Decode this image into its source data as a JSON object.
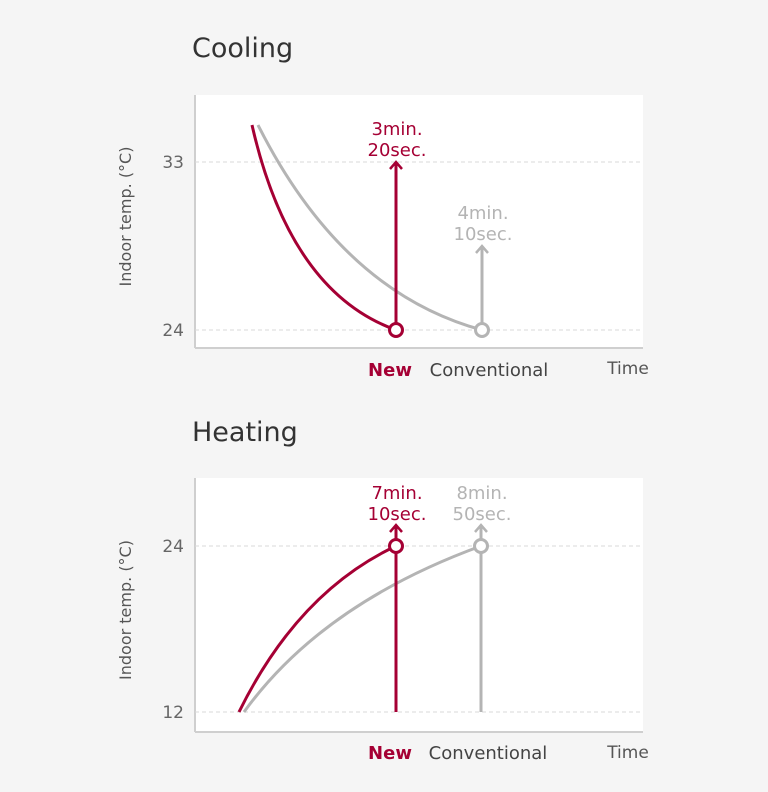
{
  "colors": {
    "new": "#a50034",
    "conventional": "#b4b4b4",
    "axis": "#cfcfcf",
    "grid": "#d8d8d8",
    "text": "#444444",
    "tick": "#666666"
  },
  "chart_data": [
    {
      "type": "line",
      "title": "Cooling",
      "ylabel": "Indoor temp. (°C)",
      "xlabel": "Time",
      "yticks": [
        33,
        24
      ],
      "grid": "dashed horizontal at ticks",
      "target_temp": 24,
      "series": [
        {
          "name": "New",
          "key": "new",
          "time_to_target_sec": 200,
          "annotation": [
            "3min.",
            "20sec."
          ]
        },
        {
          "name": "Conventional",
          "key": "conventional",
          "time_to_target_sec": 250,
          "annotation": [
            "4min.",
            "10sec."
          ]
        }
      ]
    },
    {
      "type": "line",
      "title": "Heating",
      "ylabel": "Indoor temp. (°C)",
      "xlabel": "Time",
      "yticks": [
        24,
        12
      ],
      "grid": "dashed horizontal at ticks",
      "target_temp": 24,
      "series": [
        {
          "name": "New",
          "key": "new",
          "time_to_target_sec": 430,
          "annotation": [
            "7min.",
            "10sec."
          ]
        },
        {
          "name": "Conventional",
          "key": "conventional",
          "time_to_target_sec": 530,
          "annotation": [
            "8min.",
            "50sec."
          ]
        }
      ]
    }
  ]
}
